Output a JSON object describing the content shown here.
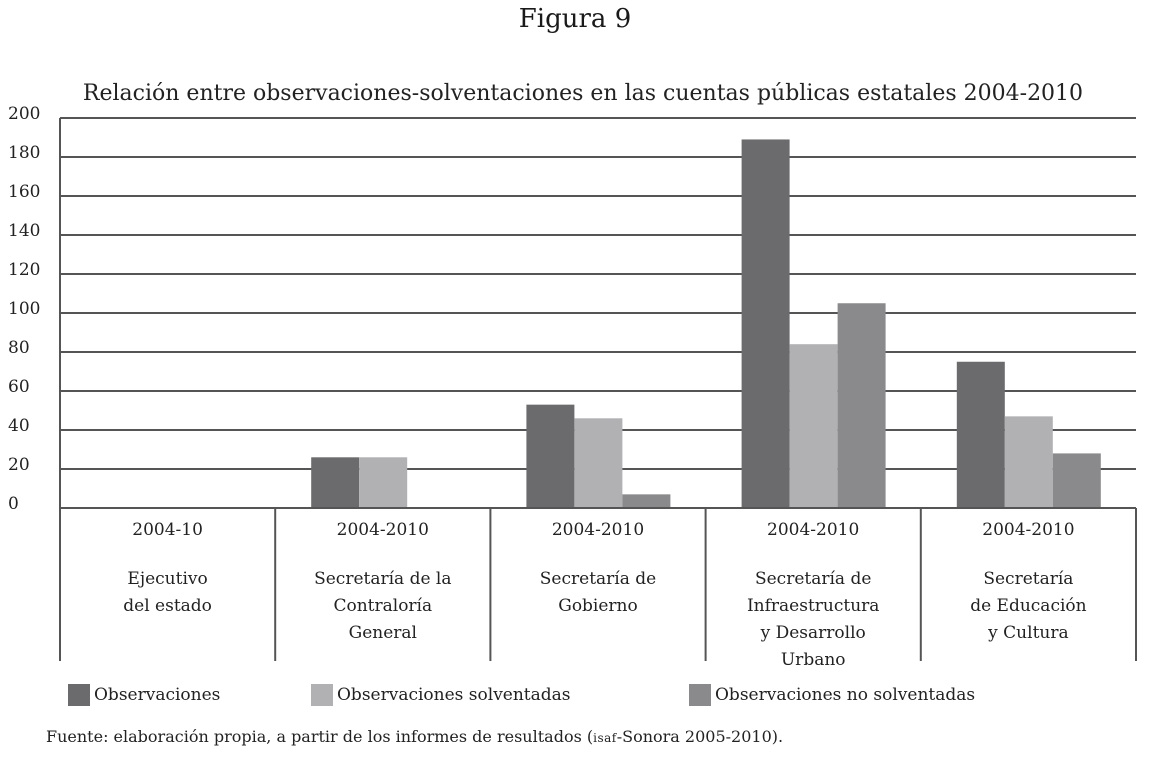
{
  "figure_label": "Figura 9",
  "colors": {
    "observaciones": "#6b6b6d",
    "solventadas": "#b1b1b3",
    "no_solventadas": "#8a8a8c",
    "grid": "#555555"
  },
  "chart_data": {
    "type": "bar",
    "title": "Relación entre observaciones-solventaciones en las cuentas públicas estatales 2004-2010",
    "ylim": [
      0,
      200
    ],
    "yticks": [
      0,
      20,
      40,
      60,
      80,
      100,
      120,
      140,
      160,
      180,
      200
    ],
    "grid": true,
    "legend_position": "bottom",
    "categories": [
      {
        "period": "2004-10",
        "name_lines": [
          "Ejecutivo",
          "del estado"
        ]
      },
      {
        "period": "2004-2010",
        "name_lines": [
          "Secretaría de la",
          "Contraloría",
          "General"
        ]
      },
      {
        "period": "2004-2010",
        "name_lines": [
          "Secretaría de",
          "Gobierno"
        ]
      },
      {
        "period": "2004-2010",
        "name_lines": [
          "Secretaría de",
          "Infraestructura",
          "y Desarrollo",
          "Urbano"
        ]
      },
      {
        "period": "2004-2010",
        "name_lines": [
          "Secretaría",
          "de Educación",
          "y Cultura"
        ]
      }
    ],
    "series": [
      {
        "name": "Observaciones",
        "color_key": "observaciones",
        "values": [
          0,
          26,
          53,
          189,
          75
        ]
      },
      {
        "name": "Observaciones solventadas",
        "color_key": "solventadas",
        "values": [
          0,
          26,
          46,
          84,
          47
        ]
      },
      {
        "name": "Observaciones no solventadas",
        "color_key": "no_solventadas",
        "values": [
          0,
          0,
          7,
          105,
          28
        ]
      }
    ]
  },
  "source": {
    "prefix": "Fuente: elaboración propia, a partir de los informes de resultados (",
    "smallcaps": "isaf",
    "suffix": "-Sonora 2005-2010)."
  }
}
